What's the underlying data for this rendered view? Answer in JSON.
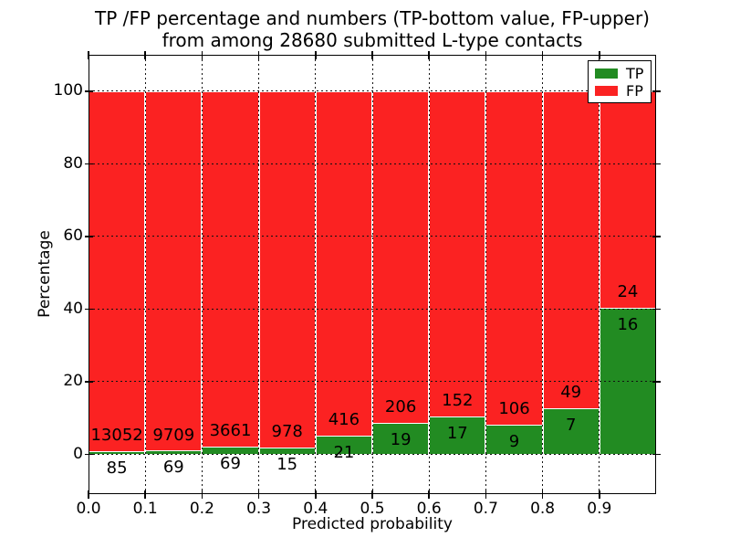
{
  "figure": {
    "background": "#ffffff"
  },
  "chart_data": {
    "type": "bar",
    "stacked": true,
    "orientation": "vertical",
    "title": "TP /FP percentage and numbers (TP-bottom value, FP-upper)\nfrom among 28680 submitted L-type contacts",
    "xlabel": "Predicted probability",
    "ylabel": "Percentage",
    "xlim": [
      0.0,
      1.0
    ],
    "ylim": [
      -11,
      110
    ],
    "grid": true,
    "grid_linestyle": "dotted",
    "grid_color": "#000000",
    "bar_edge_color": "#ffffff",
    "bins": {
      "edges": [
        0.0,
        0.1,
        0.2,
        0.3,
        0.4,
        0.5,
        0.6,
        0.7,
        0.8,
        0.9,
        1.0
      ],
      "width": 0.1
    },
    "xticks": {
      "values": [
        0.0,
        0.1,
        0.2,
        0.3,
        0.4,
        0.5,
        0.6,
        0.7,
        0.8,
        0.9
      ],
      "labels": [
        "0.0",
        "0.1",
        "0.2",
        "0.3",
        "0.4",
        "0.5",
        "0.6",
        "0.7",
        "0.8",
        "0.9"
      ]
    },
    "yticks": {
      "values": [
        0,
        20,
        40,
        60,
        80,
        100
      ],
      "labels": [
        "0",
        "20",
        "40",
        "60",
        "80",
        "100"
      ]
    },
    "series": [
      {
        "name": "TP",
        "color": "#228b22",
        "counts": [
          85,
          69,
          69,
          15,
          21,
          19,
          17,
          9,
          7,
          16
        ]
      },
      {
        "name": "FP",
        "color": "#fb2222",
        "counts": [
          13052,
          9709,
          3661,
          978,
          416,
          206,
          152,
          106,
          49,
          24
        ]
      }
    ],
    "value_unit": "percent of bin total",
    "legend": {
      "position": "upper right",
      "entries": [
        {
          "label": "TP",
          "color": "#228b22"
        },
        {
          "label": "FP",
          "color": "#fb2222"
        }
      ]
    }
  }
}
